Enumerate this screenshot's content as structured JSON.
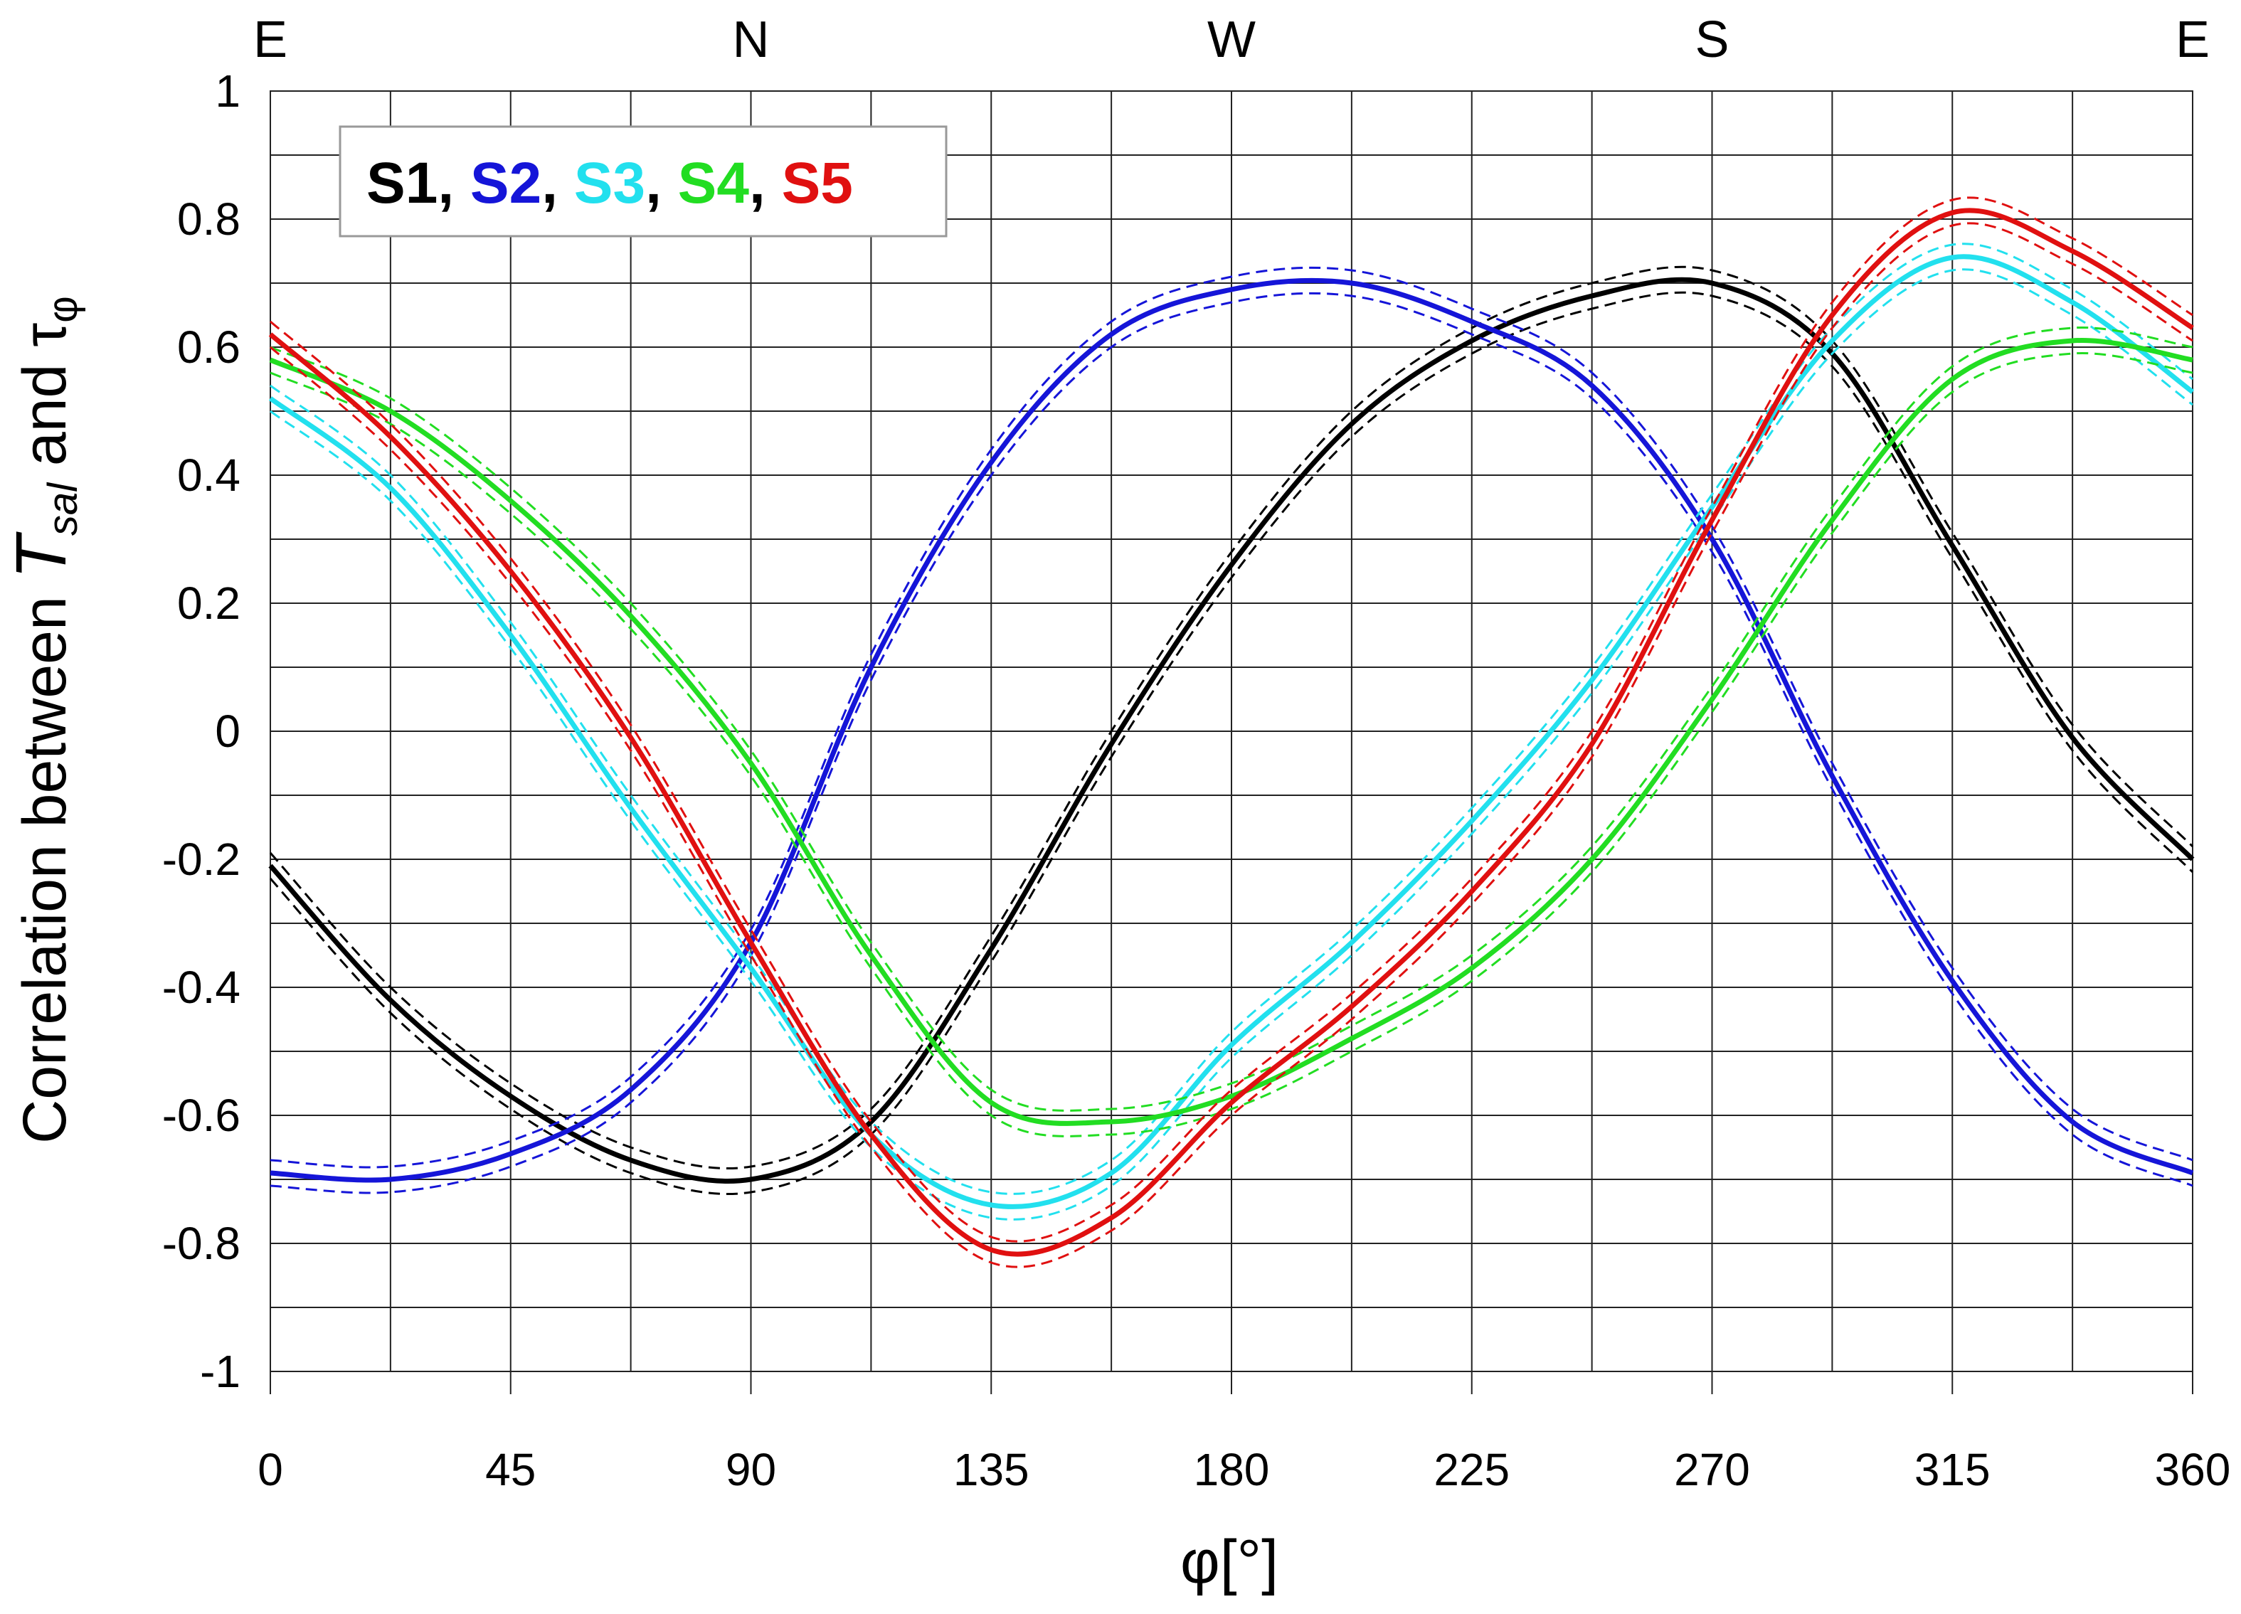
{
  "chart_data": {
    "type": "line",
    "title": "",
    "xlabel": "φ[°]",
    "ylabel": "Correlation between T_sal and τ_φ",
    "ylabel_parts": {
      "prefix": "Correlation between ",
      "T": "T",
      "T_sub": "sal",
      "mid": " and τ",
      "tau_sub": "φ"
    },
    "xlim": [
      0,
      360
    ],
    "ylim": [
      -1,
      1
    ],
    "xticks": [
      0,
      45,
      90,
      135,
      180,
      225,
      270,
      315,
      360
    ],
    "xtick_labels": [
      "0",
      "45",
      "90",
      "135",
      "180",
      "225",
      "270",
      "315",
      "360"
    ],
    "yticks": [
      1,
      0.8,
      0.6,
      0.4,
      0.2,
      0,
      -0.2,
      -0.4,
      -0.6,
      -0.8,
      -1
    ],
    "ytick_labels": [
      "1",
      "0.8",
      "0.6",
      "0.4",
      "0.2",
      "0",
      "-0.2",
      "-0.4",
      "-0.6",
      "-0.8",
      "-1"
    ],
    "grid": true,
    "grid_step_x": 22.5,
    "grid_step_y": 0.1,
    "top_axis_labels": [
      {
        "x": 0,
        "label": "E"
      },
      {
        "x": 90,
        "label": "N"
      },
      {
        "x": 180,
        "label": "W"
      },
      {
        "x": 270,
        "label": "S"
      },
      {
        "x": 360,
        "label": "E"
      }
    ],
    "legend": {
      "placement": "top-left",
      "entries": [
        {
          "label": "S1",
          "sep": ", "
        },
        {
          "label": "S2",
          "sep": ", "
        },
        {
          "label": "S3",
          "sep": ", "
        },
        {
          "label": "S4",
          "sep": ", "
        },
        {
          "label": "S5",
          "sep": ""
        }
      ]
    },
    "confidence_band_halfwidth": 0.02,
    "x": [
      0,
      22.5,
      45,
      67.5,
      90,
      112.5,
      135,
      157.5,
      180,
      202.5,
      225,
      247.5,
      270,
      292.5,
      315,
      337.5,
      360
    ],
    "series": [
      {
        "name": "S1",
        "color": "#000000",
        "values": [
          -0.21,
          -0.42,
          -0.57,
          -0.67,
          -0.7,
          -0.61,
          -0.34,
          -0.02,
          0.26,
          0.48,
          0.61,
          0.68,
          0.7,
          0.59,
          0.29,
          -0.01,
          -0.2
        ]
      },
      {
        "name": "S2",
        "color": "#1515d8",
        "values": [
          -0.69,
          -0.7,
          -0.66,
          -0.56,
          -0.33,
          0.1,
          0.42,
          0.62,
          0.69,
          0.7,
          0.64,
          0.54,
          0.3,
          -0.07,
          -0.39,
          -0.61,
          -0.69
        ]
      },
      {
        "name": "S3",
        "color": "#22e0ee",
        "values": [
          0.52,
          0.38,
          0.15,
          -0.12,
          -0.37,
          -0.63,
          -0.74,
          -0.69,
          -0.49,
          -0.33,
          -0.14,
          0.08,
          0.35,
          0.61,
          0.74,
          0.67,
          0.53
        ]
      },
      {
        "name": "S4",
        "color": "#22dd22",
        "values": [
          0.58,
          0.5,
          0.36,
          0.18,
          -0.05,
          -0.35,
          -0.58,
          -0.61,
          -0.57,
          -0.48,
          -0.37,
          -0.2,
          0.05,
          0.33,
          0.55,
          0.61,
          0.58
        ]
      },
      {
        "name": "S5",
        "color": "#e01010",
        "values": [
          0.62,
          0.46,
          0.25,
          -0.01,
          -0.33,
          -0.63,
          -0.81,
          -0.76,
          -0.58,
          -0.43,
          -0.25,
          -0.02,
          0.33,
          0.65,
          0.81,
          0.75,
          0.63
        ]
      }
    ]
  }
}
